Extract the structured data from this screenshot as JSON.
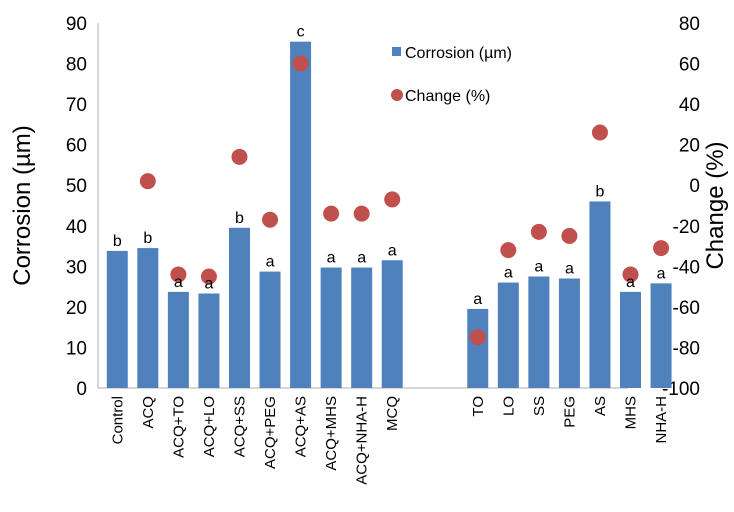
{
  "chart_data": {
    "type": "bar",
    "title": "",
    "xlabel": "",
    "ylabel": "Corrosion (µm)",
    "y2label": "Change (%)",
    "ylim": [
      0,
      90
    ],
    "y2lim": [
      -100,
      80
    ],
    "yticks": [
      "0",
      "10",
      "20",
      "30",
      "40",
      "50",
      "60",
      "70",
      "80",
      "90"
    ],
    "y2ticks": [
      "-100",
      "-80",
      "-60",
      "-40",
      "-20",
      "0",
      "20",
      "40",
      "60",
      "80"
    ],
    "legend_position": "top-center",
    "grid": false,
    "colors": {
      "bars": "#4f81bd",
      "points": "#c0504d"
    },
    "categories": [
      "Control",
      "ACQ",
      "ACQ+TO",
      "ACQ+LO",
      "ACQ+SS",
      "ACQ+PEG",
      "ACQ+AS",
      "ACQ+MHS",
      "ACQ+NHA-H",
      "MCQ",
      "TO",
      "LO",
      "SS",
      "PEG",
      "AS",
      "MHS",
      "NHA-H"
    ],
    "series": [
      {
        "name": "Corrosion (µm)",
        "type": "bar",
        "axis": "left",
        "values": [
          33.8,
          34.5,
          23.7,
          23.3,
          39.5,
          28.7,
          85.4,
          29.7,
          29.7,
          31.5,
          19.5,
          26.0,
          27.5,
          27.0,
          46.0,
          23.7,
          25.8
        ]
      },
      {
        "name": "Change (%)",
        "type": "scatter",
        "axis": "right",
        "values": [
          null,
          2,
          -44,
          -45,
          14,
          -17,
          60,
          -14,
          -14,
          -7,
          -75,
          -32,
          -23,
          -25,
          26,
          -44,
          -31
        ]
      }
    ],
    "significance_letters": [
      "b",
      "b",
      "a",
      "a",
      "b",
      "a",
      "c",
      "a",
      "a",
      "a",
      "a",
      "a",
      "a",
      "a",
      "b",
      "a",
      "a"
    ]
  }
}
